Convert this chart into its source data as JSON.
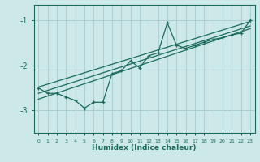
{
  "xlabel": "Humidex (Indice chaleur)",
  "bg_color": "#cce8e8",
  "grid_color": "#aacfcf",
  "line_color": "#1a6b5a",
  "xlim": [
    -0.5,
    23.5
  ],
  "ylim": [
    -3.5,
    -0.65
  ],
  "yticks": [
    -3,
    -2,
    -1
  ],
  "xticks": [
    0,
    1,
    2,
    3,
    4,
    5,
    6,
    7,
    8,
    9,
    10,
    11,
    12,
    13,
    14,
    15,
    16,
    17,
    18,
    19,
    20,
    21,
    22,
    23
  ],
  "main_series_x": [
    0,
    1,
    2,
    3,
    4,
    5,
    6,
    7,
    8,
    9,
    10,
    11,
    12,
    13,
    14,
    15,
    16,
    17,
    18,
    19,
    20,
    21,
    22,
    23
  ],
  "main_series_y": [
    -2.5,
    -2.62,
    -2.62,
    -2.7,
    -2.78,
    -2.95,
    -2.82,
    -2.82,
    -2.18,
    -2.12,
    -1.9,
    -2.05,
    -1.78,
    -1.72,
    -1.05,
    -1.55,
    -1.62,
    -1.55,
    -1.48,
    -1.42,
    -1.38,
    -1.32,
    -1.28,
    -1.0
  ],
  "line1_x": [
    0,
    23
  ],
  "line1_y": [
    -2.48,
    -1.02
  ],
  "line2_x": [
    0,
    23
  ],
  "line2_y": [
    -2.62,
    -1.12
  ],
  "line3_x": [
    0,
    23
  ],
  "line3_y": [
    -2.75,
    -1.18
  ]
}
